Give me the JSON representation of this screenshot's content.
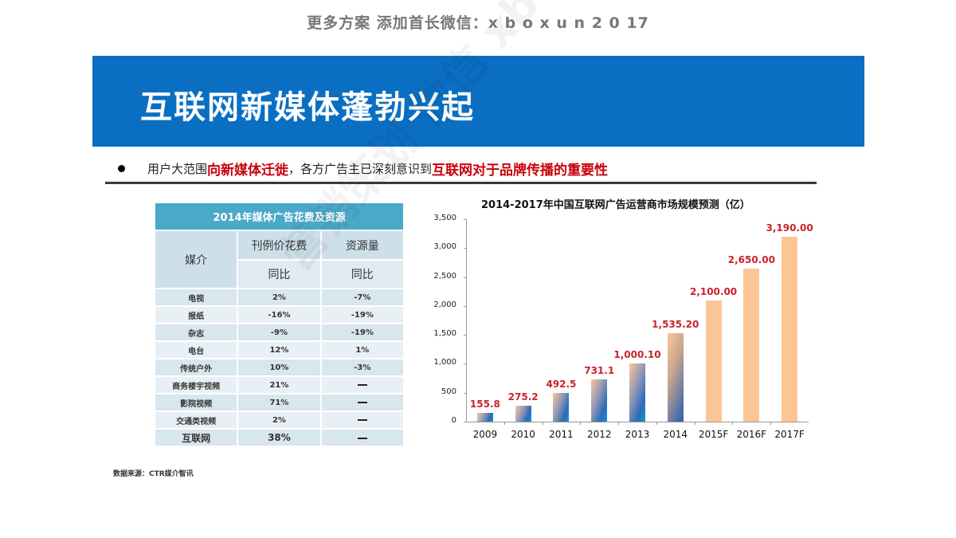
{
  "top_note": "更多方案 添加首长微信：x b o x  u n 2 0 17",
  "banner": {
    "title": "互联网新媒体蓬勃兴起",
    "color": "#0a6fc2"
  },
  "bullet": {
    "part1": "用户大范围",
    "part2": "向新媒体迁徙",
    "part3": "，各方广告主已深刻意识到",
    "part4": "互联网对于品牌传播的重要性"
  },
  "table": {
    "caption": "2014年媒体广告花费及资源",
    "col_media": "媒介",
    "col_spend": "刊例价花费",
    "col_resource": "资源量",
    "sub_spend": "同比",
    "sub_resource": "同比",
    "rows": [
      {
        "media": "电视",
        "spend": "2%",
        "resource": "-7%"
      },
      {
        "media": "报纸",
        "spend": "-16%",
        "resource": "-19%"
      },
      {
        "media": "杂志",
        "spend": "-9%",
        "resource": "-19%"
      },
      {
        "media": "电台",
        "spend": "12%",
        "resource": "1%"
      },
      {
        "media": "传统户外",
        "spend": "10%",
        "resource": "-3%"
      },
      {
        "media": "商务楼宇视频",
        "spend": "21%",
        "resource": "—"
      },
      {
        "media": "影院视频",
        "spend": "71%",
        "resource": "—"
      },
      {
        "media": "交通类视频",
        "spend": "2%",
        "resource": "—"
      },
      {
        "media": "互联网",
        "spend": "38%",
        "resource": "—"
      }
    ]
  },
  "chart_data": {
    "type": "bar",
    "title": "2014-2017年中国互联网广告运营商市场规模预测（亿）",
    "categories": [
      "2009",
      "2010",
      "2011",
      "2012",
      "2013",
      "2014",
      "2015F",
      "2016F",
      "2017F"
    ],
    "values": [
      155.8,
      275.2,
      492.5,
      731.1,
      1000.1,
      1535.2,
      2100.0,
      2650.0,
      3190.0
    ],
    "value_labels": [
      "155.8",
      "275.2",
      "492.5",
      "731.1",
      "1,000.10",
      "1,535.20",
      "2,100.00",
      "2,650.00",
      "3,190.00"
    ],
    "yticks": [
      "0",
      "500",
      "1,000",
      "1,500",
      "2,000",
      "2,500",
      "3,000",
      "3,500"
    ],
    "ylim": [
      0,
      3500
    ],
    "xlabel": "",
    "ylabel": "",
    "grid": false,
    "label_color": "#c8232c",
    "forecast_color": "#fcc596"
  },
  "source": "数据来源：CTR媒介智讯",
  "watermark": "营销策划 微信 xboxun2017"
}
